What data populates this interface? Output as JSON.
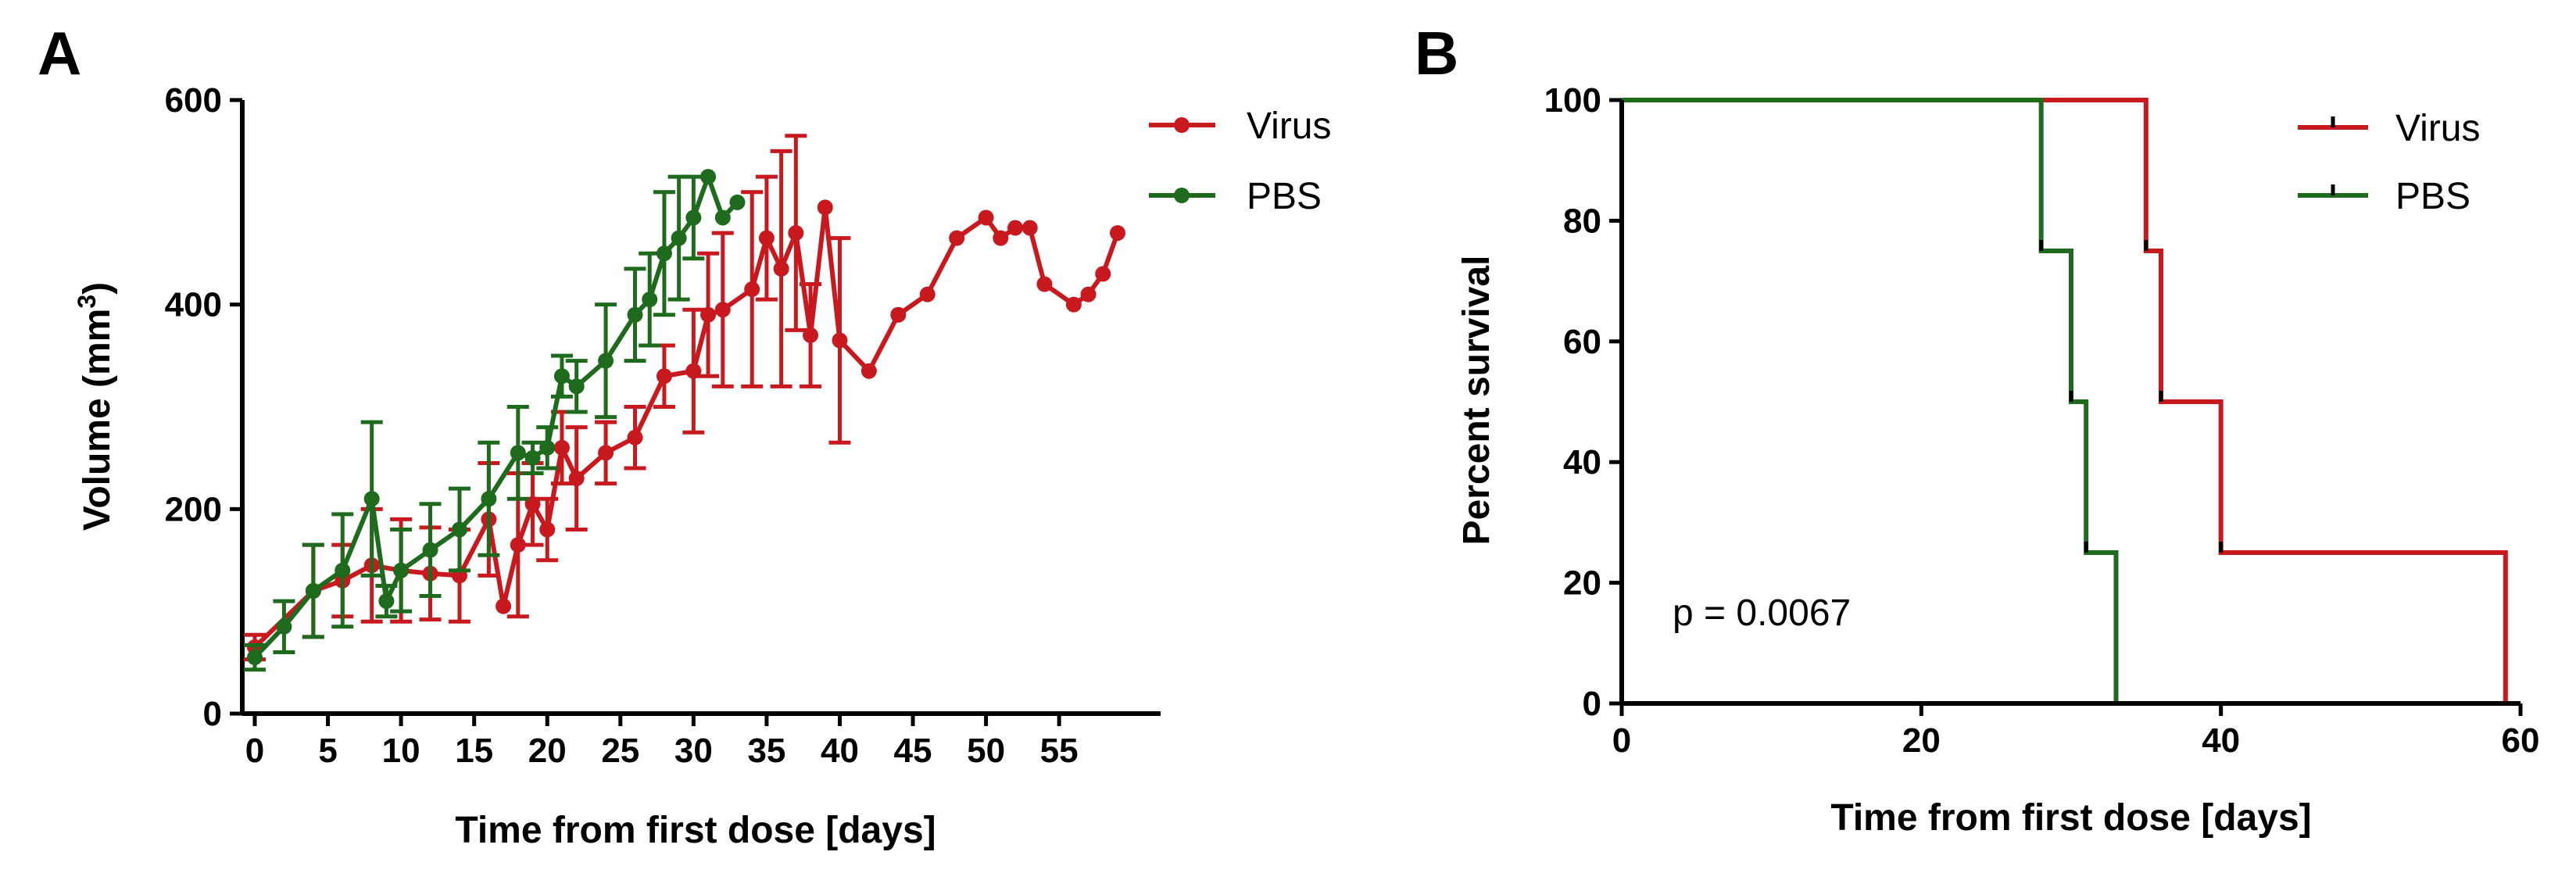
{
  "panels": {
    "a": {
      "letter": "A"
    },
    "b": {
      "letter": "B"
    }
  },
  "chart_data": [
    {
      "type": "line",
      "title": "",
      "xlabel": "Time from first dose [days]",
      "ylabel": "Volume (mm",
      "ylabel_sup": "3",
      "ylabel_close": ")",
      "xlim": [
        -0.5,
        62
      ],
      "ylim": [
        0,
        600
      ],
      "xticks": [
        0,
        5,
        10,
        15,
        20,
        25,
        30,
        35,
        40,
        45,
        50,
        55
      ],
      "yticks": [
        0,
        200,
        400,
        600
      ],
      "legend": [
        "Virus",
        "PBS"
      ],
      "colors": {
        "Virus": "#c8191f",
        "PBS": "#1e6b1e"
      },
      "series": [
        {
          "name": "Virus",
          "x": [
            0,
            4,
            6,
            8,
            10,
            12,
            14,
            16,
            17,
            18,
            19,
            20,
            21,
            22,
            24,
            26,
            28,
            30,
            31,
            32,
            34,
            35,
            36,
            37,
            38,
            39,
            40,
            42,
            44,
            46,
            48,
            50,
            51,
            52,
            53,
            54,
            56,
            57,
            58,
            59
          ],
          "y": [
            65,
            120,
            130,
            145,
            140,
            137,
            135,
            190,
            105,
            165,
            205,
            180,
            260,
            230,
            255,
            270,
            330,
            335,
            390,
            395,
            415,
            465,
            435,
            470,
            370,
            495,
            365,
            335,
            390,
            410,
            465,
            485,
            465,
            475,
            475,
            420,
            400,
            410,
            430,
            470
          ],
          "err": [
            12,
            45,
            35,
            55,
            50,
            45,
            45,
            55,
            0,
            70,
            40,
            30,
            35,
            50,
            30,
            30,
            30,
            60,
            60,
            75,
            95,
            60,
            115,
            95,
            50,
            0,
            100,
            0,
            0,
            0,
            0,
            0,
            0,
            0,
            0,
            0,
            0,
            0,
            0,
            0
          ]
        },
        {
          "name": "PBS",
          "x": [
            0,
            2,
            4,
            6,
            8,
            9,
            10,
            12,
            14,
            16,
            18,
            19,
            20,
            21,
            22,
            24,
            26,
            27,
            28,
            29,
            30,
            31,
            32,
            33
          ],
          "y": [
            55,
            85,
            120,
            140,
            210,
            110,
            140,
            160,
            180,
            210,
            255,
            250,
            260,
            330,
            320,
            345,
            390,
            405,
            450,
            465,
            485,
            525,
            485,
            500
          ],
          "err": [
            12,
            25,
            45,
            55,
            75,
            15,
            40,
            45,
            40,
            55,
            45,
            15,
            20,
            20,
            25,
            55,
            45,
            45,
            60,
            60,
            40,
            0,
            0,
            0
          ]
        }
      ]
    },
    {
      "type": "line",
      "title": "",
      "xlabel": "Time from first dose [days]",
      "ylabel": "Percent survival",
      "xlim": [
        0,
        60
      ],
      "ylim": [
        0,
        100
      ],
      "xticks": [
        0,
        20,
        40,
        60
      ],
      "yticks": [
        0,
        20,
        40,
        60,
        80,
        100
      ],
      "legend": [
        "Virus",
        "PBS"
      ],
      "colors": {
        "Virus": "#c8191f",
        "PBS": "#1e6b1e"
      },
      "annotation": "p = 0.0067",
      "series": [
        {
          "name": "Virus",
          "x": [
            0,
            35,
            36,
            40,
            59
          ],
          "y": [
            100,
            75,
            50,
            25,
            0
          ]
        },
        {
          "name": "PBS",
          "x": [
            0,
            28,
            30,
            31,
            33
          ],
          "y": [
            100,
            75,
            50,
            25,
            0
          ]
        }
      ]
    }
  ]
}
